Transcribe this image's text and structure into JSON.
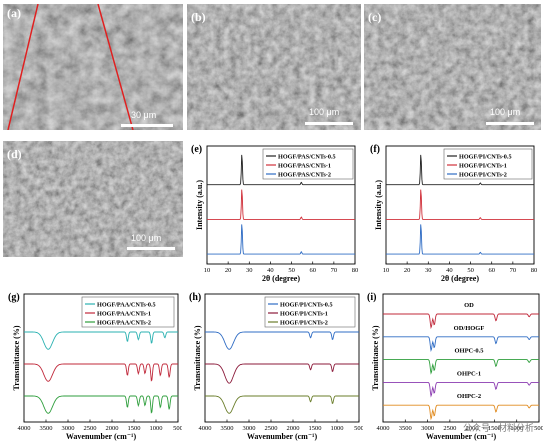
{
  "sem_panels": [
    {
      "label": "(a)",
      "scale": "30 μm"
    },
    {
      "label": "(b)",
      "scale": "100 μm"
    },
    {
      "label": "(c)",
      "scale": "100 μm"
    },
    {
      "label": "(d)",
      "scale": "100 μm"
    }
  ],
  "chart_data": [
    {
      "panel": "(e)",
      "type": "line",
      "xlabel": "2θ (degree)",
      "ylabel": "Intensity (a.u.)",
      "xlim": [
        10,
        80
      ],
      "xticks": [
        10,
        20,
        30,
        40,
        50,
        60,
        70,
        80
      ],
      "series": [
        {
          "name": "HOGF/PAS/CNTs-0.5",
          "color": "#222222",
          "peaks": [
            [
              26.5,
              1.0
            ],
            [
              54.6,
              0.08
            ]
          ]
        },
        {
          "name": "HOGF/PAS/CNTs-1",
          "color": "#d0303a",
          "peaks": [
            [
              26.5,
              1.0
            ],
            [
              54.6,
              0.08
            ]
          ]
        },
        {
          "name": "HOGF/PAS/CNTs-2",
          "color": "#2f6cc4",
          "peaks": [
            [
              26.5,
              1.0
            ],
            [
              54.6,
              0.08
            ]
          ]
        }
      ]
    },
    {
      "panel": "(f)",
      "type": "line",
      "xlabel": "2θ (degree)",
      "ylabel": "Intensity (a.u.)",
      "xlim": [
        10,
        80
      ],
      "xticks": [
        10,
        20,
        30,
        40,
        50,
        60,
        70,
        80
      ],
      "series": [
        {
          "name": "HOGF/PI/CNTs-0.5",
          "color": "#222222",
          "peaks": [
            [
              26.5,
              1.0
            ],
            [
              54.6,
              0.06
            ]
          ]
        },
        {
          "name": "HOGF/PI/CNTs-1",
          "color": "#d0303a",
          "peaks": [
            [
              26.5,
              1.0
            ],
            [
              54.6,
              0.06
            ]
          ]
        },
        {
          "name": "HOGF/PI/CNTs-2",
          "color": "#2f6cc4",
          "peaks": [
            [
              26.5,
              1.0
            ],
            [
              54.6,
              0.06
            ]
          ]
        }
      ]
    },
    {
      "panel": "(g)",
      "type": "line",
      "xlabel": "Wavenumber (cm⁻¹)",
      "ylabel": "Transmittance (%)",
      "xlim": [
        4000,
        500
      ],
      "xticks": [
        4000,
        3500,
        3000,
        2500,
        2000,
        1500,
        1000,
        500
      ],
      "series": [
        {
          "name": "HOGF/PAA/CNTs-0.5",
          "color": "#2ab1b1",
          "bands": [
            [
              3450,
              0.9
            ],
            [
              1650,
              0.5
            ],
            [
              1400,
              0.4
            ],
            [
              1100,
              0.6
            ],
            [
              800,
              0.3
            ]
          ]
        },
        {
          "name": "HOGF/PAA/CNTs-1",
          "color": "#c0283a",
          "bands": [
            [
              3450,
              0.9
            ],
            [
              1650,
              0.6
            ],
            [
              1400,
              0.5
            ],
            [
              1250,
              0.5
            ],
            [
              1100,
              0.9
            ],
            [
              900,
              0.6
            ],
            [
              700,
              0.7
            ]
          ]
        },
        {
          "name": "HOGF/PAA/CNTs-2",
          "color": "#2e9e3c",
          "bands": [
            [
              3450,
              0.9
            ],
            [
              1650,
              0.6
            ],
            [
              1400,
              0.5
            ],
            [
              1250,
              0.5
            ],
            [
              1100,
              0.9
            ],
            [
              900,
              0.6
            ],
            [
              700,
              0.7
            ]
          ]
        }
      ]
    },
    {
      "panel": "(h)",
      "type": "line",
      "xlabel": "Wavenumber (cm⁻¹)",
      "ylabel": "Transmittance (%)",
      "xlim": [
        4000,
        500
      ],
      "xticks": [
        4000,
        3500,
        3000,
        2500,
        2000,
        1500,
        1000,
        500
      ],
      "series": [
        {
          "name": "HOGF/PI/CNTs-0.5",
          "color": "#2f6cc4",
          "bands": [
            [
              3450,
              0.9
            ],
            [
              1600,
              0.3
            ],
            [
              1100,
              0.4
            ]
          ]
        },
        {
          "name": "HOGF/PI/CNTs-1",
          "color": "#8b1a3a",
          "bands": [
            [
              3450,
              1.0
            ],
            [
              1600,
              0.3
            ],
            [
              1100,
              0.4
            ]
          ]
        },
        {
          "name": "HOGF/PI/CNTs-2",
          "color": "#6a7d2a",
          "bands": [
            [
              3450,
              0.9
            ],
            [
              1600,
              0.3
            ],
            [
              1100,
              0.4
            ]
          ]
        }
      ]
    },
    {
      "panel": "(i)",
      "type": "line",
      "xlabel": "Wavenumber (cm⁻¹)",
      "ylabel": "Transmittance (%)",
      "xlim": [
        4000,
        500
      ],
      "xticks": [
        4000,
        3500,
        3000,
        2500,
        2000,
        1500,
        1000,
        500
      ],
      "series": [
        {
          "name": "OD",
          "color": "#c0283a",
          "bands": [
            [
              2920,
              1.0
            ],
            [
              2850,
              0.8
            ],
            [
              1465,
              0.5
            ],
            [
              720,
              0.2
            ]
          ]
        },
        {
          "name": "OD/HOGF",
          "color": "#2f6cc4",
          "bands": [
            [
              2920,
              1.0
            ],
            [
              2850,
              0.8
            ],
            [
              1465,
              0.5
            ],
            [
              720,
              0.2
            ]
          ]
        },
        {
          "name": "OHPC-0.5",
          "color": "#2e9e3c",
          "bands": [
            [
              2920,
              1.0
            ],
            [
              2850,
              0.8
            ],
            [
              1465,
              0.5
            ],
            [
              720,
              0.2
            ]
          ]
        },
        {
          "name": "OHPC-1",
          "color": "#8a3ab0",
          "bands": [
            [
              2920,
              1.0
            ],
            [
              2850,
              0.8
            ],
            [
              1465,
              0.5
            ],
            [
              720,
              0.2
            ]
          ]
        },
        {
          "name": "OHPC-2",
          "color": "#e08a1e",
          "bands": [
            [
              2920,
              1.0
            ],
            [
              2850,
              0.8
            ],
            [
              1465,
              0.5
            ],
            [
              720,
              0.2
            ]
          ]
        }
      ]
    }
  ],
  "watermark": "公众号 · 材料分析"
}
